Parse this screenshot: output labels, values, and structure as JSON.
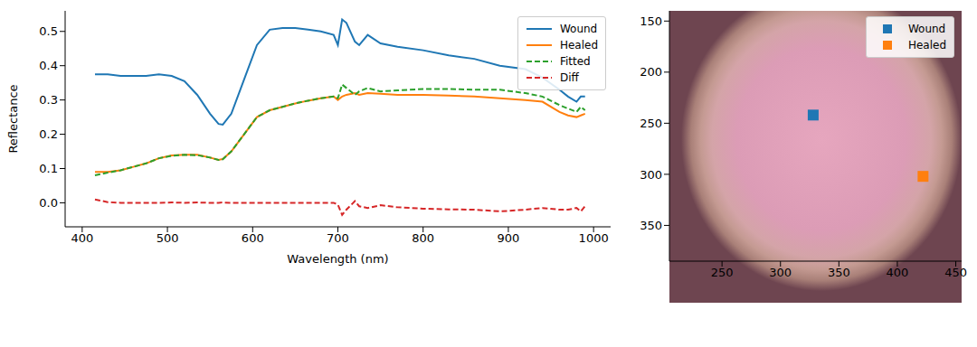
{
  "chart_data": [
    {
      "type": "line",
      "x_label": "Wavelength (nm)",
      "y_label": "Reflectance",
      "x": [
        415,
        430,
        445,
        460,
        475,
        490,
        505,
        520,
        535,
        550,
        560,
        565,
        575,
        590,
        605,
        620,
        635,
        650,
        665,
        680,
        695,
        700,
        705,
        710,
        720,
        725,
        735,
        750,
        770,
        800,
        830,
        860,
        890,
        920,
        940,
        960,
        970,
        980,
        985,
        990
      ],
      "series": [
        {
          "name": "Wound",
          "color": "#1f77b4",
          "line_style": "solid",
          "values": [
            0.375,
            0.375,
            0.37,
            0.37,
            0.37,
            0.375,
            0.37,
            0.355,
            0.315,
            0.26,
            0.23,
            0.228,
            0.26,
            0.36,
            0.46,
            0.505,
            0.51,
            0.51,
            0.505,
            0.5,
            0.49,
            0.46,
            0.535,
            0.525,
            0.47,
            0.46,
            0.49,
            0.465,
            0.455,
            0.445,
            0.43,
            0.42,
            0.4,
            0.39,
            0.365,
            0.33,
            0.31,
            0.295,
            0.31,
            0.31
          ]
        },
        {
          "name": "Healed",
          "color": "#ff7f0e",
          "line_style": "solid",
          "values": [
            0.09,
            0.09,
            0.095,
            0.105,
            0.115,
            0.13,
            0.138,
            0.14,
            0.14,
            0.132,
            0.125,
            0.128,
            0.15,
            0.2,
            0.25,
            0.27,
            0.28,
            0.29,
            0.298,
            0.305,
            0.31,
            0.3,
            0.31,
            0.315,
            0.32,
            0.315,
            0.32,
            0.318,
            0.315,
            0.315,
            0.313,
            0.31,
            0.305,
            0.3,
            0.295,
            0.265,
            0.255,
            0.25,
            0.255,
            0.26
          ]
        },
        {
          "name": "Fitted",
          "color": "#2ca02c",
          "line_style": "dashed",
          "values": [
            0.08,
            0.088,
            0.095,
            0.105,
            0.115,
            0.13,
            0.137,
            0.14,
            0.139,
            0.132,
            0.125,
            0.127,
            0.15,
            0.2,
            0.25,
            0.27,
            0.28,
            0.29,
            0.298,
            0.305,
            0.31,
            0.305,
            0.345,
            0.335,
            0.315,
            0.325,
            0.335,
            0.325,
            0.328,
            0.332,
            0.332,
            0.33,
            0.33,
            0.32,
            0.31,
            0.285,
            0.275,
            0.265,
            0.28,
            0.27
          ]
        },
        {
          "name": "Diff",
          "color": "#d62728",
          "line_style": "dashed",
          "values": [
            0.01,
            0.002,
            0,
            0,
            0,
            0,
            0.001,
            0,
            0.001,
            0,
            0,
            0.001,
            0,
            0,
            0,
            0,
            0,
            0,
            0,
            0,
            0,
            -0.005,
            -0.035,
            -0.02,
            0.005,
            -0.01,
            -0.015,
            -0.007,
            -0.013,
            -0.017,
            -0.019,
            -0.02,
            -0.025,
            -0.02,
            -0.015,
            -0.02,
            -0.02,
            -0.015,
            -0.025,
            -0.01
          ]
        }
      ],
      "xlim": [
        380,
        1020
      ],
      "xticks": [
        400,
        500,
        600,
        700,
        800,
        900,
        1000
      ],
      "ylim": [
        -0.07,
        0.56
      ],
      "yticks": [
        {
          "value": 0,
          "label": "0.0"
        },
        {
          "value": 0.1,
          "label": "0.1"
        },
        {
          "value": 0.2,
          "label": "0.2"
        },
        {
          "value": 0.3,
          "label": "0.3"
        },
        {
          "value": 0.4,
          "label": "0.4"
        },
        {
          "value": 0.5,
          "label": "0.5"
        }
      ],
      "legend": "upper right"
    },
    {
      "type": "scatter",
      "series": [
        {
          "name": "Wound",
          "color": "#1f77b4",
          "marker": "square",
          "x": [
            328
          ],
          "y": [
            242
          ]
        },
        {
          "name": "Healed",
          "color": "#ff7f0e",
          "marker": "square",
          "x": [
            422
          ],
          "y": [
            302
          ]
        }
      ],
      "xlim": [
        205,
        455
      ],
      "xticks": [
        250,
        300,
        350,
        400,
        450
      ],
      "ylim": [
        385,
        140
      ],
      "yticks": [
        150,
        200,
        250,
        300,
        350
      ],
      "legend": "upper right"
    }
  ]
}
